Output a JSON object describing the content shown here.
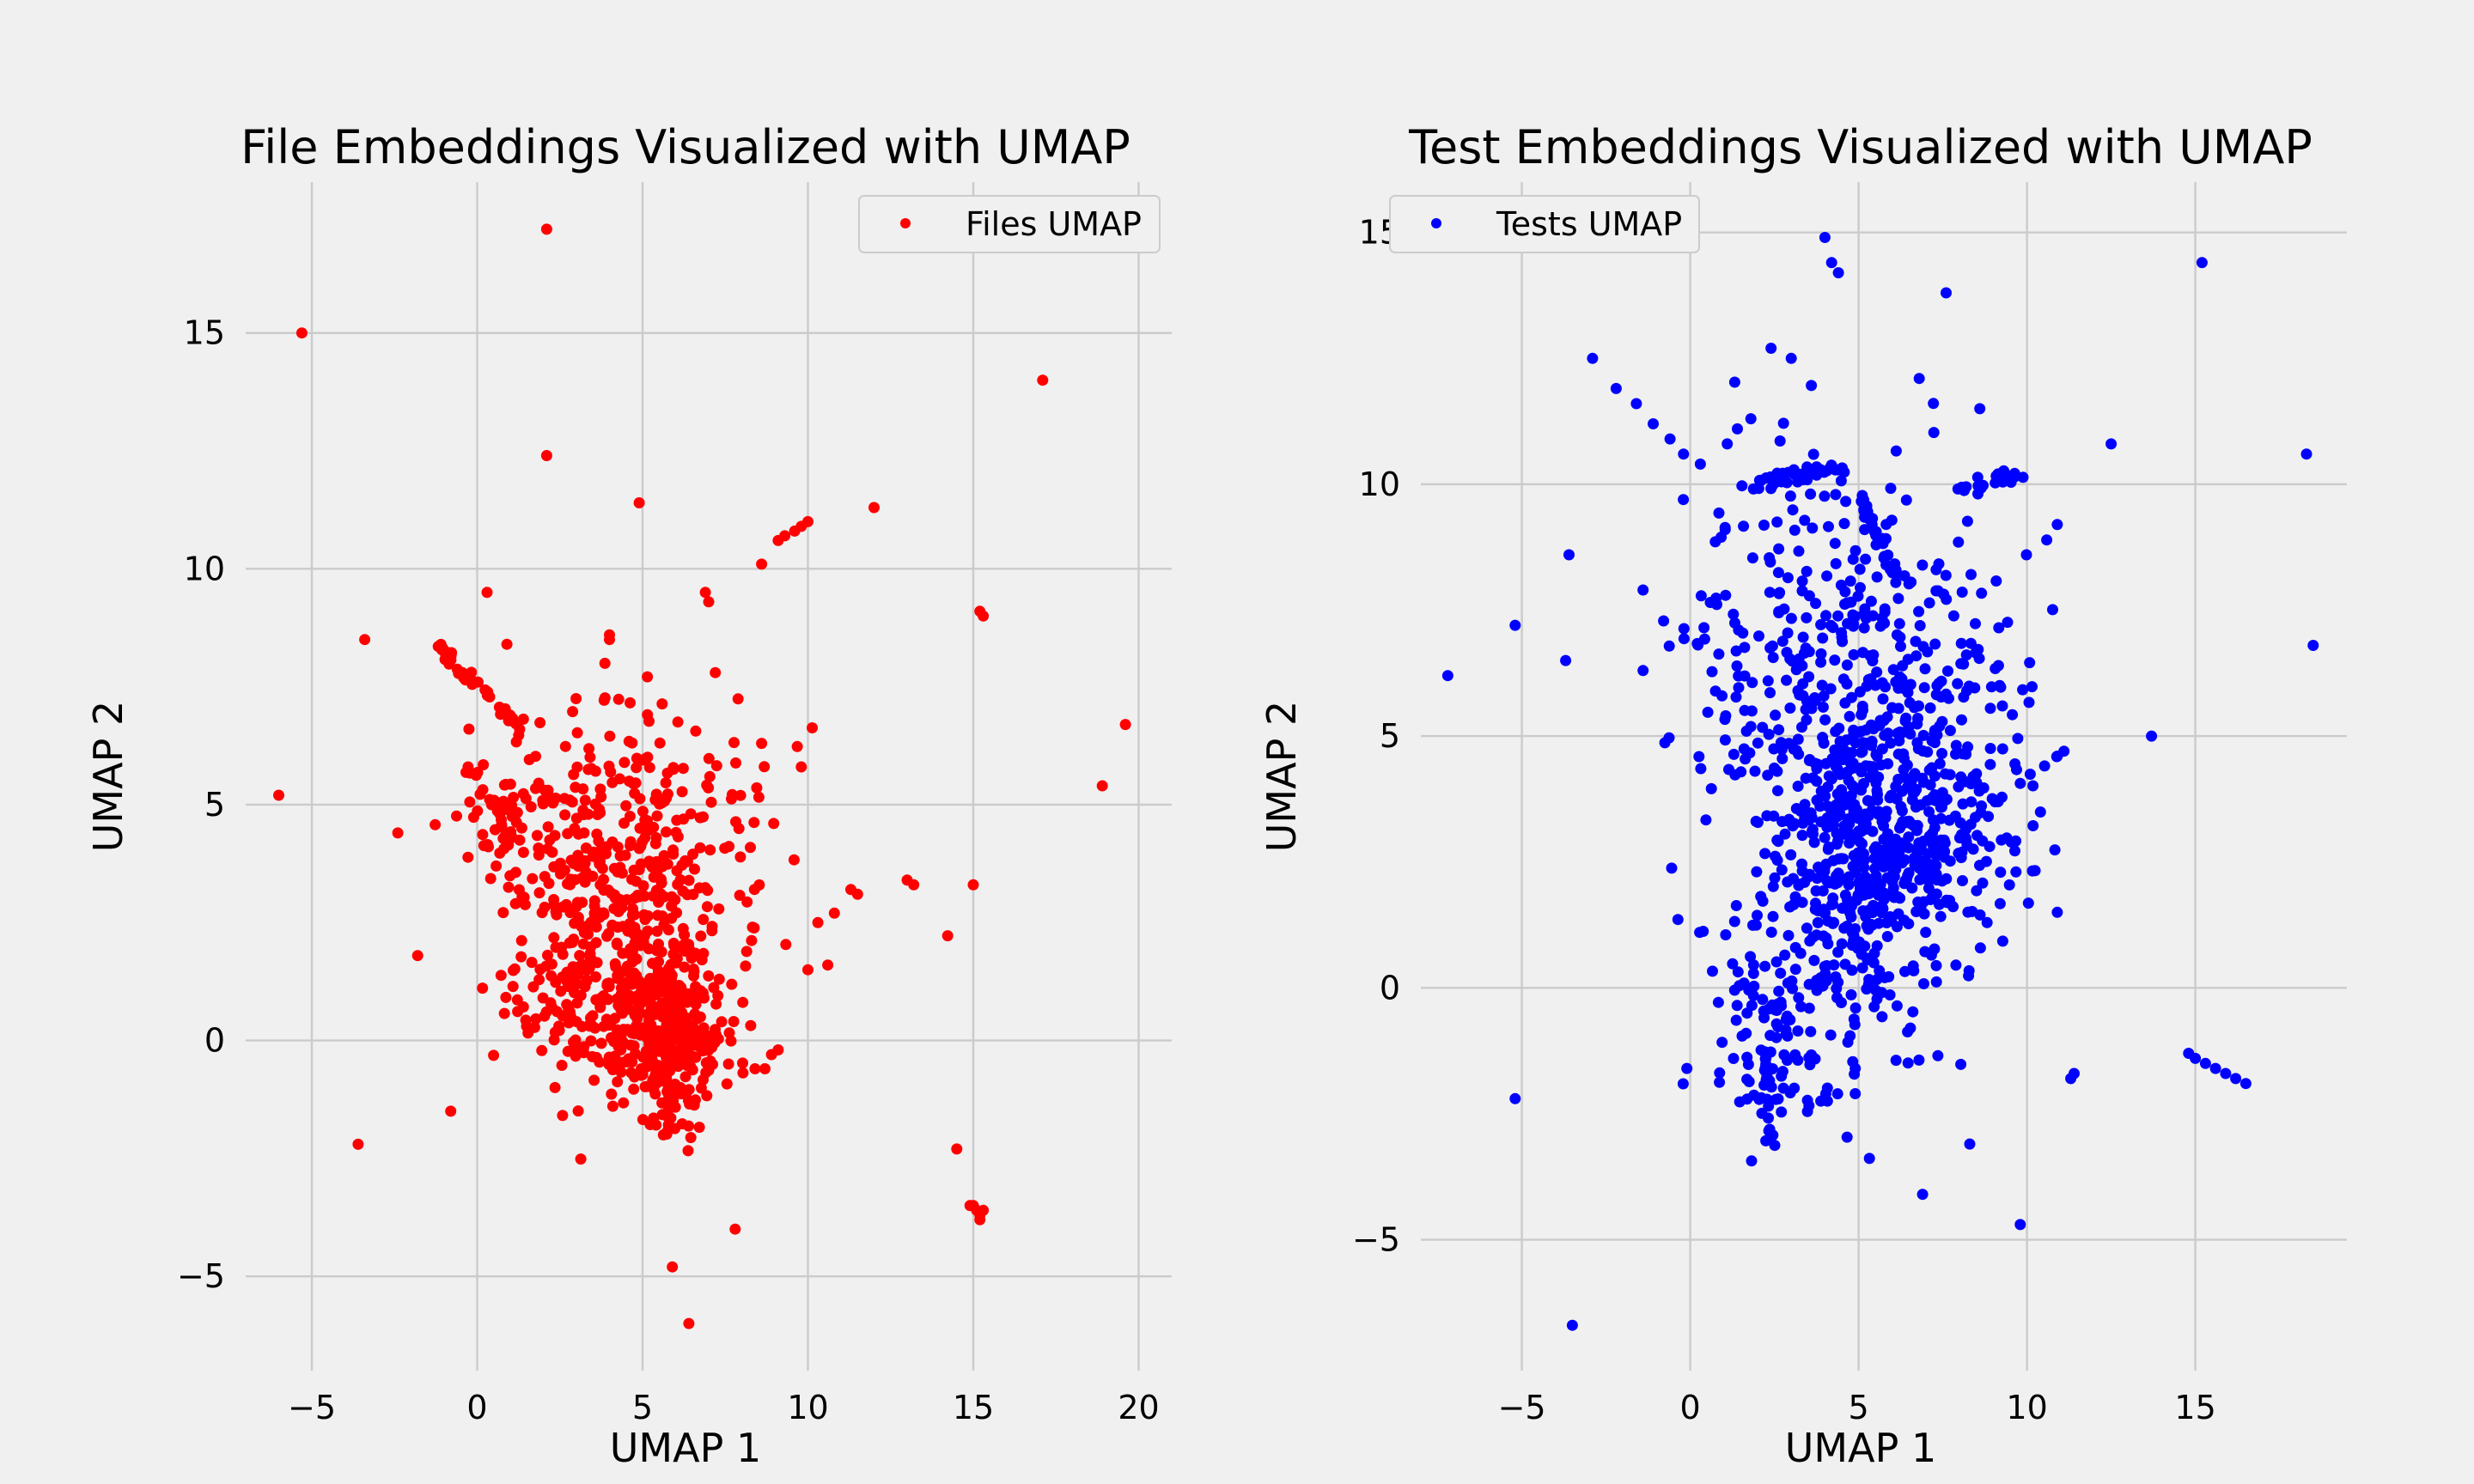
{
  "chart_data": [
    {
      "type": "scatter",
      "title": "File Embeddings Visualized with UMAP",
      "xlabel": "UMAP 1",
      "ylabel": "UMAP 2",
      "xlim": [
        -7,
        21
      ],
      "ylim": [
        -7,
        18.2
      ],
      "xticks": [
        -5,
        0,
        5,
        10,
        15,
        20
      ],
      "yticks": [
        -5,
        0,
        5,
        10,
        15
      ],
      "grid": true,
      "legend": "upper-right",
      "series": [
        {
          "name": "Files UMAP",
          "color": "#ff0000",
          "outliers": [
            [
              2.1,
              17.2
            ],
            [
              -5.3,
              15.0
            ],
            [
              17.1,
              14.0
            ],
            [
              2.1,
              12.4
            ],
            [
              4.9,
              11.4
            ],
            [
              12.0,
              11.3
            ],
            [
              15.2,
              9.1
            ],
            [
              15.3,
              9.0
            ],
            [
              19.6,
              6.7
            ],
            [
              18.9,
              5.4
            ],
            [
              -6.0,
              5.2
            ],
            [
              -3.4,
              8.5
            ],
            [
              0.3,
              9.5
            ],
            [
              0.9,
              8.4
            ],
            [
              -2.4,
              4.4
            ],
            [
              -1.8,
              1.8
            ],
            [
              -0.8,
              -1.5
            ],
            [
              -3.6,
              -2.2
            ],
            [
              14.5,
              -2.3
            ],
            [
              15.0,
              3.3
            ],
            [
              15.0,
              -3.5
            ],
            [
              15.1,
              -3.6
            ],
            [
              15.2,
              -3.7
            ],
            [
              15.3,
              -3.6
            ],
            [
              15.2,
              -3.8
            ],
            [
              14.9,
              -3.5
            ],
            [
              5.9,
              -4.8
            ],
            [
              6.4,
              -6.0
            ],
            [
              7.8,
              -4.0
            ],
            [
              9.8,
              5.8
            ],
            [
              8.6,
              6.3
            ],
            [
              13.0,
              3.4
            ],
            [
              13.2,
              3.3
            ],
            [
              11.3,
              3.2
            ],
            [
              11.5,
              3.1
            ],
            [
              10.3,
              2.5
            ],
            [
              10.8,
              2.7
            ],
            [
              10.0,
              1.5
            ],
            [
              10.6,
              1.6
            ],
            [
              8.9,
              -0.3
            ],
            [
              9.1,
              -0.2
            ],
            [
              8.4,
              -0.6
            ],
            [
              8.7,
              -0.6
            ],
            [
              7.6,
              -0.5
            ],
            [
              8.6,
              10.1
            ],
            [
              9.1,
              10.6
            ],
            [
              9.3,
              10.7
            ],
            [
              9.6,
              10.8
            ],
            [
              9.8,
              10.9
            ],
            [
              10.0,
              11.0
            ],
            [
              4.0,
              8.5
            ],
            [
              4.0,
              8.6
            ],
            [
              7.2,
              7.8
            ],
            [
              7.0,
              9.3
            ],
            [
              6.9,
              9.5
            ]
          ]
        }
      ]
    },
    {
      "type": "scatter",
      "title": "Test Embeddings Visualized with UMAP",
      "xlabel": "UMAP 1",
      "ylabel": "UMAP 2",
      "xlim": [
        -8,
        19.5
      ],
      "ylim": [
        -7.6,
        16
      ],
      "xticks": [
        -5,
        0,
        5,
        10,
        15
      ],
      "yticks": [
        -5,
        0,
        5,
        10,
        15
      ],
      "grid": true,
      "legend": "upper-left",
      "series": [
        {
          "name": "Tests UMAP",
          "color": "#0000ff",
          "outliers": [
            [
              4.0,
              14.9
            ],
            [
              4.2,
              14.4
            ],
            [
              4.4,
              14.2
            ],
            [
              7.6,
              13.8
            ],
            [
              15.2,
              14.4
            ],
            [
              18.3,
              10.6
            ],
            [
              18.5,
              6.8
            ],
            [
              12.5,
              10.8
            ],
            [
              13.7,
              5.0
            ],
            [
              8.6,
              11.5
            ],
            [
              6.8,
              12.1
            ],
            [
              -7.2,
              6.2
            ],
            [
              -5.2,
              7.2
            ],
            [
              -3.6,
              8.6
            ],
            [
              -3.7,
              6.5
            ],
            [
              -5.2,
              -2.2
            ],
            [
              -3.5,
              -6.7
            ],
            [
              -1.4,
              7.9
            ],
            [
              -1.4,
              6.3
            ],
            [
              -0.1,
              -1.6
            ],
            [
              9.8,
              -4.7
            ],
            [
              6.9,
              -4.1
            ],
            [
              8.3,
              -3.1
            ],
            [
              11.4,
              -1.7
            ],
            [
              11.3,
              -1.8
            ],
            [
              10.9,
              1.5
            ],
            [
              10.9,
              4.6
            ],
            [
              11.1,
              4.7
            ],
            [
              10.9,
              9.2
            ],
            [
              14.8,
              -1.3
            ],
            [
              15.0,
              -1.4
            ],
            [
              15.3,
              -1.5
            ],
            [
              15.6,
              -1.6
            ],
            [
              15.9,
              -1.7
            ],
            [
              16.2,
              -1.8
            ],
            [
              16.5,
              -1.9
            ],
            [
              4.9,
              -1.6
            ],
            [
              4.9,
              -2.1
            ],
            [
              3.0,
              12.5
            ],
            [
              2.4,
              12.7
            ],
            [
              -2.9,
              12.5
            ],
            [
              -2.2,
              11.9
            ],
            [
              -1.6,
              11.6
            ],
            [
              -1.1,
              11.2
            ],
            [
              -0.6,
              10.9
            ],
            [
              -0.2,
              10.6
            ],
            [
              0.3,
              10.4
            ],
            [
              1.1,
              10.8
            ],
            [
              1.4,
              11.1
            ],
            [
              1.8,
              11.3
            ]
          ]
        }
      ]
    }
  ]
}
